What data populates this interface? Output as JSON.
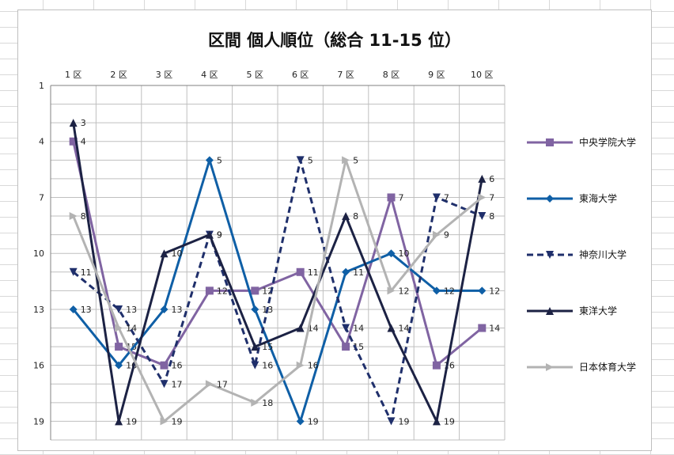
{
  "chart_data": {
    "type": "line",
    "title": "区間 個人順位（総合 11-15 位）",
    "categories": [
      "1 区",
      "2 区",
      "3 区",
      "4 区",
      "5 区",
      "6 区",
      "7 区",
      "8 区",
      "9 区",
      "10 区"
    ],
    "y_axis": {
      "reversed": true,
      "min": 1,
      "max": 20,
      "ticks": [
        1,
        4,
        7,
        10,
        13,
        16,
        19
      ]
    },
    "grid": true,
    "legend_position": "right",
    "series": [
      {
        "name": "中央学院大学",
        "color": "#8064a2",
        "marker": "square",
        "dash": false,
        "values": [
          4,
          15,
          16,
          12,
          12,
          11,
          15,
          7,
          16,
          14
        ]
      },
      {
        "name": "東海大学",
        "color": "#0f5fa6",
        "marker": "diamond",
        "dash": false,
        "values": [
          13,
          16,
          13,
          5,
          13,
          19,
          11,
          10,
          12,
          12
        ]
      },
      {
        "name": "神奈川大学",
        "color": "#1f2f6b",
        "marker": "triangle-down",
        "dash": true,
        "values": [
          11,
          13,
          17,
          9,
          16,
          5,
          14,
          19,
          7,
          8
        ]
      },
      {
        "name": "東洋大学",
        "color": "#1c2244",
        "marker": "triangle-up",
        "dash": false,
        "values": [
          3,
          19,
          10,
          9,
          15,
          14,
          8,
          14,
          19,
          6
        ]
      },
      {
        "name": "日本体育大学",
        "color": "#b3b3b3",
        "marker": "arrow",
        "dash": false,
        "values": [
          8,
          14,
          19,
          17,
          18,
          16,
          5,
          12,
          9,
          7
        ]
      }
    ]
  }
}
